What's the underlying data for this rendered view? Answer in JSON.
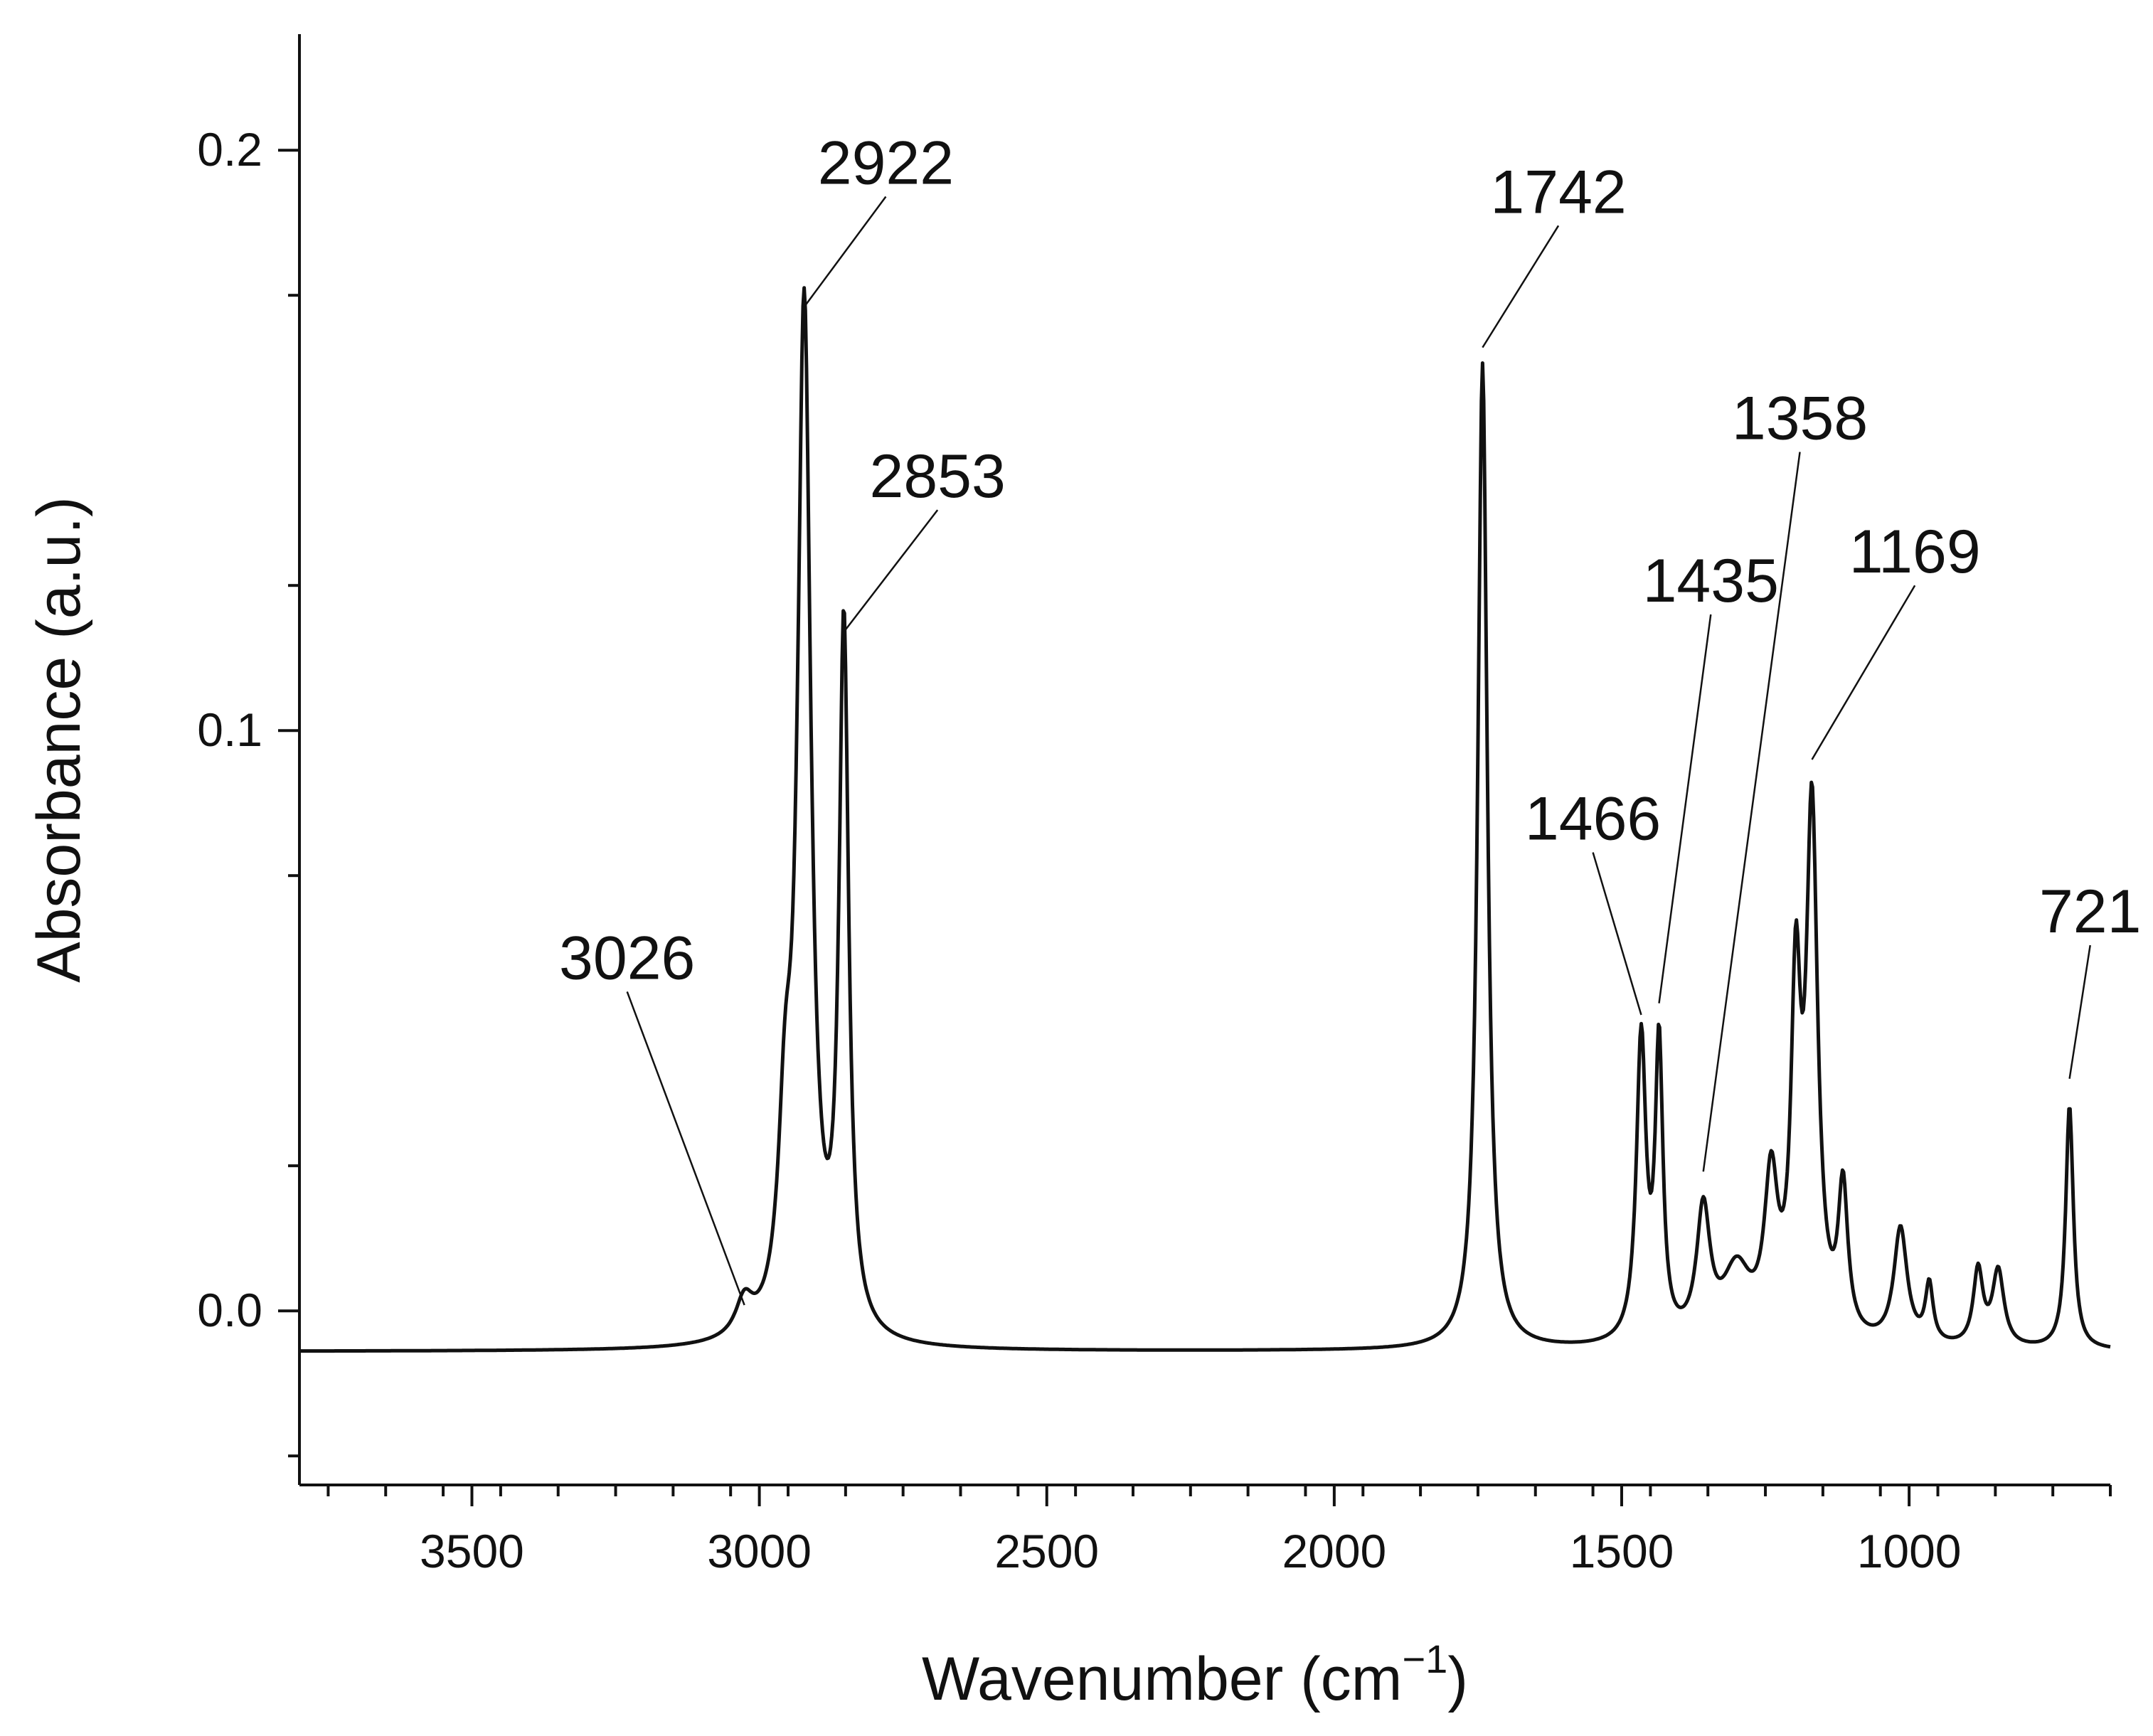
{
  "chart_data": {
    "type": "line",
    "xlabel": "Wavenumber (cm",
    "xlabel_exponent": "−1",
    "xlabel_suffix": ")",
    "ylabel": "Absorbance (a.u.)",
    "xlim": [
      3800,
      650
    ],
    "ylim": [
      -0.03,
      0.22
    ],
    "x_ticks": [
      3500,
      3000,
      2500,
      2000,
      1500,
      1000
    ],
    "x_tick_labels": [
      "3500",
      "3000",
      "2500",
      "2000",
      "1500",
      "1000"
    ],
    "y_ticks": [
      0.0,
      0.1,
      0.2
    ],
    "y_tick_labels": [
      "0.0",
      "0.1",
      "0.2"
    ],
    "grid": false,
    "line_color": "#111111",
    "baseline": -0.007,
    "peaks": [
      {
        "center": 3026,
        "height": 0.006,
        "width": 18
      },
      {
        "center": 2955,
        "height": 0.03,
        "width": 14
      },
      {
        "center": 2922,
        "height": 0.176,
        "width": 14
      },
      {
        "center": 2853,
        "height": 0.121,
        "width": 10
      },
      {
        "center": 1742,
        "height": 0.17,
        "width": 10
      },
      {
        "center": 1466,
        "height": 0.052,
        "width": 10
      },
      {
        "center": 1435,
        "height": 0.05,
        "width": 8
      },
      {
        "center": 1358,
        "height": 0.022,
        "width": 14
      },
      {
        "center": 1300,
        "height": 0.012,
        "width": 30
      },
      {
        "center": 1240,
        "height": 0.026,
        "width": 14
      },
      {
        "center": 1197,
        "height": 0.056,
        "width": 10
      },
      {
        "center": 1169,
        "height": 0.089,
        "width": 12
      },
      {
        "center": 1115,
        "height": 0.025,
        "width": 10
      },
      {
        "center": 1015,
        "height": 0.02,
        "width": 14
      },
      {
        "center": 965,
        "height": 0.01,
        "width": 8
      },
      {
        "center": 880,
        "height": 0.013,
        "width": 10
      },
      {
        "center": 845,
        "height": 0.013,
        "width": 12
      },
      {
        "center": 721,
        "height": 0.042,
        "width": 8
      }
    ],
    "annotations": [
      {
        "label": "3026",
        "x": 3026,
        "y": 0.001,
        "label_x": 3230,
        "label_y": 0.055
      },
      {
        "label": "2922",
        "x": 2922,
        "y": 0.173,
        "label_x": 2780,
        "label_y": 0.192
      },
      {
        "label": "2853",
        "x": 2853,
        "y": 0.117,
        "label_x": 2690,
        "label_y": 0.138
      },
      {
        "label": "1742",
        "x": 1742,
        "y": 0.166,
        "label_x": 1610,
        "label_y": 0.187
      },
      {
        "label": "1466",
        "x": 1466,
        "y": 0.051,
        "label_x": 1550,
        "label_y": 0.079
      },
      {
        "label": "1435",
        "x": 1435,
        "y": 0.053,
        "label_x": 1345,
        "label_y": 0.12
      },
      {
        "label": "1358",
        "x": 1358,
        "y": 0.024,
        "label_x": 1190,
        "label_y": 0.148
      },
      {
        "label": "1169",
        "x": 1169,
        "y": 0.095,
        "label_x": 990,
        "label_y": 0.125
      },
      {
        "label": "721",
        "x": 721,
        "y": 0.04,
        "label_x": 685,
        "label_y": 0.063
      }
    ]
  }
}
